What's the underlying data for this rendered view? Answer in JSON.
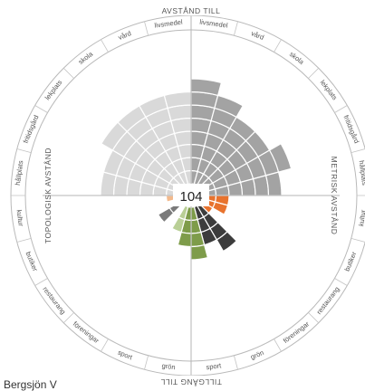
{
  "chart_data": {
    "type": "polar-bar",
    "center_value": "104",
    "axis_titles": {
      "top": "AVSTÅND TILL",
      "right": "METRISK AVSTÅND",
      "bottom": "TILLGÅNG TILL",
      "left": "TOPOLOGISK AVSTÅND"
    },
    "sectors": [
      {
        "label": "livsmedel",
        "value": 8,
        "color": "#a3a3a3"
      },
      {
        "label": "vård",
        "value": 7,
        "color": "#a3a3a3"
      },
      {
        "label": "skola",
        "value": 6,
        "color": "#a3a3a3"
      },
      {
        "label": "lekplats",
        "value": 6,
        "color": "#a3a3a3"
      },
      {
        "label": "fritidsgård",
        "value": 7,
        "color": "#a3a3a3"
      },
      {
        "label": "hållplats",
        "value": 6,
        "color": "#a3a3a3"
      },
      {
        "label": "kultur",
        "value": 2,
        "color": "#e8732e"
      },
      {
        "label": "butiker",
        "value": 2,
        "color": "#e8732e"
      },
      {
        "label": "restaurang",
        "value": 1,
        "color": "#e8732e"
      },
      {
        "label": "föreningar",
        "value": 4,
        "color": "#3c3c3c"
      },
      {
        "label": "grön",
        "value": 3,
        "color": "#3c3c3c"
      },
      {
        "label": "sport",
        "value": 4,
        "color": "#7e9c4a"
      },
      {
        "label": "grön",
        "value": 3,
        "color": "#7e9c4a"
      },
      {
        "label": "sport",
        "value": 2,
        "color": "#b9cf96"
      },
      {
        "label": "föreningar",
        "value": 0,
        "color": "#cccccc"
      },
      {
        "label": "restaurang",
        "value": 2,
        "color": "#7a7a7a"
      },
      {
        "label": "butiker",
        "value": 0,
        "color": "#cccccc"
      },
      {
        "label": "kultur",
        "value": 1,
        "color": "#f2b98c"
      },
      {
        "label": "hållplats",
        "value": 6,
        "color": "#d9d9d9"
      },
      {
        "label": "fritidsgård",
        "value": 6,
        "color": "#d9d9d9"
      },
      {
        "label": "lekplats",
        "value": 7,
        "color": "#d9d9d9"
      },
      {
        "label": "skola",
        "value": 7,
        "color": "#d9d9d9"
      },
      {
        "label": "vård",
        "value": 7,
        "color": "#d9d9d9"
      },
      {
        "label": "livsmedel",
        "value": 7,
        "color": "#d9d9d9"
      }
    ],
    "rmax": 8
  },
  "footer": "Bergsjön V"
}
